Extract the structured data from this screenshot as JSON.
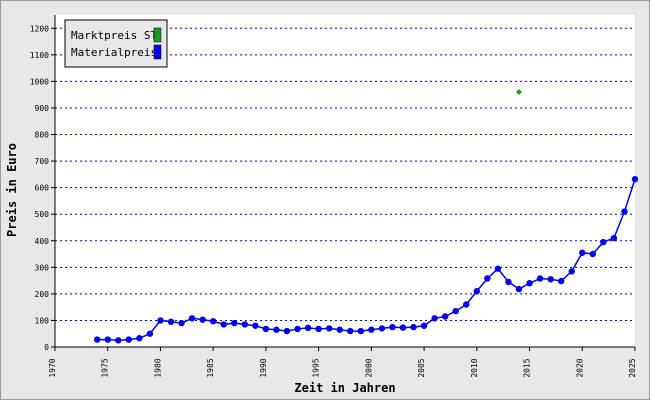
{
  "chart_data": {
    "type": "line",
    "xlabel": "Zeit in Jahren",
    "ylabel": "Preis in Euro",
    "xlim": [
      1970,
      2025
    ],
    "ylim": [
      0,
      1250
    ],
    "xticks": [
      1970,
      1975,
      1980,
      1985,
      1990,
      1995,
      2000,
      2005,
      2010,
      2015,
      2020,
      2025
    ],
    "yticks": [
      0,
      100,
      200,
      300,
      400,
      500,
      600,
      700,
      800,
      900,
      1000,
      1100,
      1200
    ],
    "grid": true,
    "legend": "top-left",
    "series": [
      {
        "name": "Marktpreis ST",
        "color": "#1a9a1a",
        "type": "scatter",
        "x": [
          2014
        ],
        "values": [
          960
        ]
      },
      {
        "name": "Materialpreis",
        "color": "#0000ee",
        "type": "line",
        "x": [
          1974,
          1975,
          1976,
          1977,
          1978,
          1979,
          1980,
          1981,
          1982,
          1983,
          1984,
          1985,
          1986,
          1987,
          1988,
          1989,
          1990,
          1991,
          1992,
          1993,
          1994,
          1995,
          1996,
          1997,
          1998,
          1999,
          2000,
          2001,
          2002,
          2003,
          2004,
          2005,
          2006,
          2007,
          2008,
          2009,
          2010,
          2011,
          2012,
          2013,
          2014,
          2015,
          2016,
          2017,
          2018,
          2019,
          2020,
          2021,
          2022,
          2023,
          2024,
          2025
        ],
        "values": [
          28,
          28,
          25,
          28,
          33,
          50,
          100,
          95,
          90,
          108,
          103,
          97,
          85,
          90,
          85,
          80,
          68,
          65,
          60,
          68,
          72,
          68,
          70,
          65,
          60,
          60,
          65,
          70,
          75,
          73,
          75,
          80,
          108,
          115,
          135,
          160,
          210,
          258,
          295,
          245,
          218,
          240,
          258,
          255,
          248,
          285,
          355,
          350,
          395,
          410,
          510,
          632
        ]
      }
    ]
  }
}
